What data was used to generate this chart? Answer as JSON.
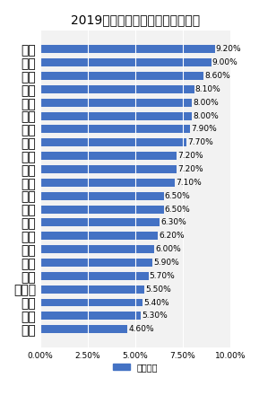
{
  "title": "2019年上半年各省份经济增速排行",
  "categories": [
    "天津",
    "海南",
    "陕西",
    "内蒙古",
    "青海",
    "上海",
    "甘肃",
    "重庆",
    "北京",
    "宁夏",
    "广东",
    "浙江",
    "山西",
    "湖南",
    "河南",
    "四川",
    "湖北",
    "安徽",
    "福建",
    "江西",
    "贵州",
    "云南"
  ],
  "values": [
    4.6,
    5.3,
    5.4,
    5.5,
    5.7,
    5.9,
    6.0,
    6.2,
    6.3,
    6.5,
    6.5,
    7.1,
    7.2,
    7.2,
    7.7,
    7.9,
    8.0,
    8.0,
    8.1,
    8.6,
    9.0,
    9.2
  ],
  "labels": [
    "4.60%",
    "5.30%",
    "5.40%",
    "5.50%",
    "5.70%",
    "5.90%",
    "6.00%",
    "6.20%",
    "6.30%",
    "6.50%",
    "6.50%",
    "7.10%",
    "7.20%",
    "7.20%",
    "7.70%",
    "7.90%",
    "8.00%",
    "8.00%",
    "8.10%",
    "8.60%",
    "9.00%",
    "9.20%"
  ],
  "bar_color": "#4472C4",
  "bg_color": "#FFFFFF",
  "plot_bg_color": "#F2F2F2",
  "grid_color": "#FFFFFF",
  "xlabel": "",
  "ylabel": "",
  "legend_label": "经济增速",
  "xlim": [
    0,
    10
  ],
  "xticks": [
    0,
    2.5,
    5.0,
    7.5,
    10.0
  ],
  "xtick_labels": [
    "0.00%",
    "2.50%",
    "5.00%",
    "7.50%",
    "10.00%"
  ],
  "title_fontsize": 9,
  "tick_fontsize": 6.5,
  "label_fontsize": 6.5,
  "legend_fontsize": 7
}
